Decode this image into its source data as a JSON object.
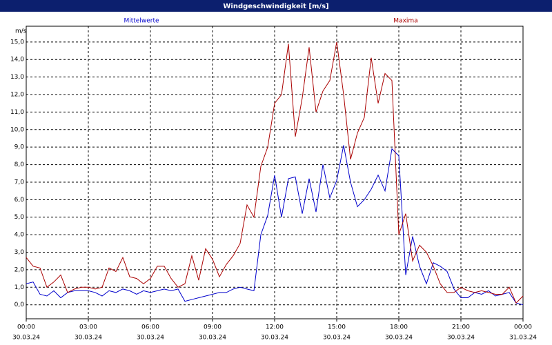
{
  "chart_data": {
    "type": "line",
    "title": "Windgeschwindigkeit [m/s]",
    "y_unit": "m/s",
    "x": [
      0,
      20,
      40,
      60,
      80,
      100,
      120,
      140,
      160,
      180,
      200,
      220,
      240,
      260,
      280,
      300,
      320,
      340,
      360,
      380,
      400,
      420,
      440,
      460,
      480,
      500,
      520,
      540,
      560,
      580,
      600,
      620,
      640,
      660,
      680,
      700,
      720,
      740,
      760,
      780,
      800,
      820,
      840,
      860,
      880,
      900,
      920,
      940,
      960,
      980,
      1000,
      1020,
      1040,
      1060,
      1080,
      1100,
      1120,
      1140,
      1160,
      1180,
      1200,
      1220,
      1240,
      1260,
      1280,
      1300,
      1320,
      1340,
      1360,
      1380,
      1400,
      1420,
      1440
    ],
    "series": [
      {
        "name": "Mittelwerte",
        "color": "#0000cc",
        "values": [
          1.2,
          1.3,
          0.6,
          0.5,
          0.8,
          0.4,
          0.7,
          0.8,
          0.8,
          0.8,
          0.7,
          0.5,
          0.8,
          0.7,
          0.9,
          0.8,
          0.6,
          0.8,
          0.7,
          0.8,
          0.9,
          0.8,
          0.9,
          0.2,
          0.3,
          0.4,
          0.5,
          0.6,
          0.7,
          0.7,
          0.9,
          1.0,
          0.9,
          0.8,
          4.0,
          5.1,
          7.4,
          5.0,
          7.2,
          7.3,
          5.2,
          7.2,
          5.3,
          8.0,
          6.1,
          7.1,
          9.1,
          7.0,
          5.6,
          6.0,
          6.6,
          7.4,
          6.5,
          8.9,
          8.5,
          1.7,
          3.9,
          2.2,
          1.2,
          2.4,
          2.2,
          1.9,
          0.9,
          0.4,
          0.4,
          0.7,
          0.6,
          0.8,
          0.5,
          0.6,
          0.7,
          0.1,
          0.0
        ]
      },
      {
        "name": "Maxima",
        "color": "#aa0000",
        "values": [
          2.7,
          2.2,
          2.1,
          1.0,
          1.3,
          1.7,
          0.7,
          0.9,
          1.0,
          1.0,
          0.9,
          1.0,
          2.1,
          1.9,
          2.7,
          1.6,
          1.5,
          1.2,
          1.5,
          2.2,
          2.2,
          1.5,
          1.0,
          1.2,
          2.8,
          1.4,
          3.2,
          2.6,
          1.6,
          2.3,
          2.8,
          3.5,
          5.7,
          5.0,
          7.9,
          9.0,
          11.5,
          12.0,
          14.9,
          9.6,
          11.8,
          14.7,
          11.0,
          12.2,
          12.8,
          15.0,
          12.0,
          8.3,
          9.8,
          10.7,
          14.1,
          11.5,
          13.2,
          12.8,
          4.0,
          5.2,
          2.5,
          3.4,
          3.0,
          2.2,
          1.2,
          0.7,
          0.7,
          1.0,
          0.8,
          0.7,
          0.8,
          0.7,
          0.6,
          0.6,
          1.0,
          0.1,
          0.5
        ]
      }
    ],
    "xlim": [
      0,
      1440
    ],
    "xticks": [
      {
        "value": 0,
        "label": "00:00"
      },
      {
        "value": 180,
        "label": "03:00"
      },
      {
        "value": 360,
        "label": "06:00"
      },
      {
        "value": 540,
        "label": "09:00"
      },
      {
        "value": 720,
        "label": "12:00"
      },
      {
        "value": 900,
        "label": "15:00"
      },
      {
        "value": 1080,
        "label": "18:00"
      },
      {
        "value": 1260,
        "label": "21:00"
      },
      {
        "value": 1440,
        "label": "00:00"
      }
    ],
    "xtick_dates": [
      "30.03.24",
      "30.03.24",
      "30.03.24",
      "30.03.24",
      "30.03.24",
      "30.03.24",
      "30.03.24",
      "30.03.24",
      "31.03.24"
    ],
    "ylim": [
      -0.8,
      15.9
    ],
    "yticks": [
      {
        "value": 0,
        "label": "0,0"
      },
      {
        "value": 1,
        "label": "1,0"
      },
      {
        "value": 2,
        "label": "2,0"
      },
      {
        "value": 3,
        "label": "3,0"
      },
      {
        "value": 4,
        "label": "4,0"
      },
      {
        "value": 5,
        "label": "5,0"
      },
      {
        "value": 6,
        "label": "6,0"
      },
      {
        "value": 7,
        "label": "7,0"
      },
      {
        "value": 8,
        "label": "8,0"
      },
      {
        "value": 9,
        "label": "9,0"
      },
      {
        "value": 10,
        "label": "10,0"
      },
      {
        "value": 11,
        "label": "11,0"
      },
      {
        "value": 12,
        "label": "12,0"
      },
      {
        "value": 13,
        "label": "13,0"
      },
      {
        "value": 14,
        "label": "14,0"
      },
      {
        "value": 15,
        "label": "15,0"
      }
    ],
    "grid": true
  }
}
